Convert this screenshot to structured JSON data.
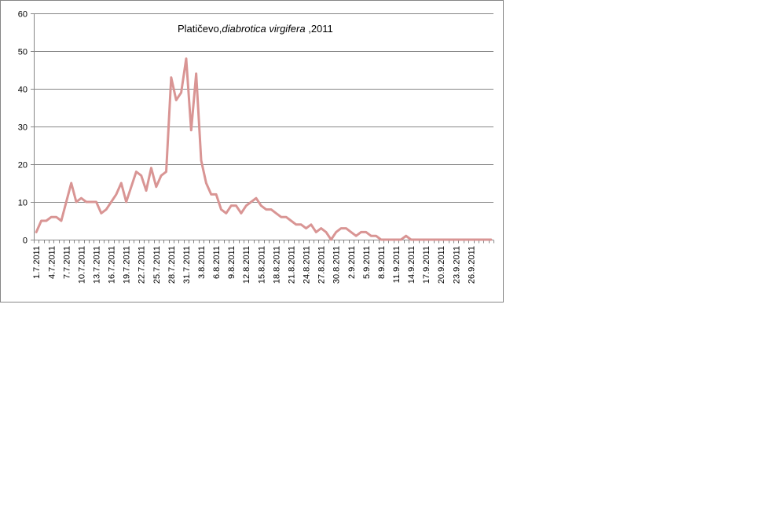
{
  "chart_data": {
    "type": "line",
    "title_plain": "Platičevo,",
    "title_italic": "diabrotica virgifera",
    "title_suffix": " ,2011",
    "xlabel": "",
    "ylabel": "",
    "ylim": [
      0,
      60
    ],
    "yticks": [
      0,
      10,
      20,
      30,
      40,
      50,
      60
    ],
    "grid": true,
    "legend": "none",
    "line_color": "#d99594",
    "x_tick_labels": [
      "1.7.2011",
      "4.7.2011",
      "7.7.2011",
      "10.7.2011",
      "13.7.2011",
      "16.7.2011",
      "19.7.2011",
      "22.7.2011",
      "25.7.2011",
      "28.7.2011",
      "31.7.2011",
      "3.8.2011",
      "6.8.2011",
      "9.8.2011",
      "12.8.2011",
      "15.8.2011",
      "18.8.2011",
      "21.8.2011",
      "24.8.2011",
      "27.8.2011",
      "30.8.2011",
      "2.9.2011",
      "5.9.2011",
      "8.9.2011",
      "11.9.2011",
      "14.9.2011",
      "17.9.2011",
      "20.9.2011",
      "23.9.2011",
      "26.9.2011"
    ],
    "x_tick_every": 3,
    "series": [
      {
        "values": [
          2,
          5,
          5,
          6,
          6,
          5,
          10,
          15,
          10,
          11,
          10,
          10,
          10,
          7,
          8,
          10,
          12,
          15,
          10,
          14,
          18,
          17,
          13,
          19,
          14,
          17,
          18,
          43,
          37,
          39,
          48,
          29,
          44,
          21,
          15,
          12,
          12,
          8,
          7,
          9,
          9,
          7,
          9,
          10,
          11,
          9,
          8,
          8,
          7,
          6,
          6,
          5,
          4,
          4,
          3,
          4,
          2,
          3,
          2,
          0,
          2,
          3,
          3,
          2,
          1,
          2,
          2,
          1,
          1,
          0,
          0,
          0,
          0,
          0,
          1,
          0,
          0,
          0,
          0,
          0,
          0,
          0,
          0,
          0,
          0,
          0,
          0,
          0,
          0,
          0,
          0,
          0
        ]
      }
    ]
  }
}
